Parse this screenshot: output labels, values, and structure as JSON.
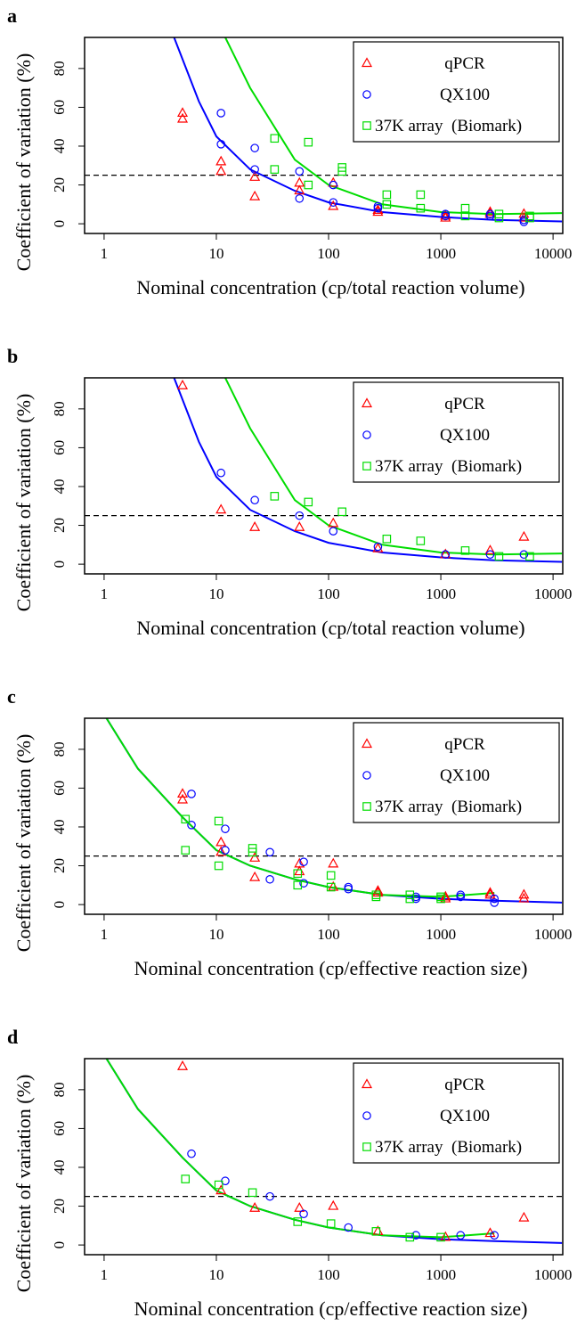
{
  "chart_data": [
    {
      "type": "scatter",
      "panel": "a",
      "xlabel": "Nominal concentration (cp/total reaction volume)",
      "ylabel": "Coefficient of variation (%)",
      "xlog": true,
      "xlim": [
        0.67,
        12200
      ],
      "ylim": [
        -5,
        96
      ],
      "xticks": [
        1,
        10,
        100,
        1000,
        10000
      ],
      "yticks": [
        0,
        20,
        40,
        60,
        80
      ],
      "hline": 25,
      "legend": "top-right",
      "series": [
        {
          "name": "qPCR",
          "color": "#ff0000",
          "marker": "triangle",
          "x": [
            5,
            5,
            11,
            11,
            22,
            22,
            55,
            55,
            110,
            110,
            275,
            275,
            1100,
            1100,
            2750,
            2750,
            5500,
            5500
          ],
          "values": [
            57,
            54,
            32,
            27,
            24,
            14,
            21,
            17,
            21,
            9,
            7,
            6,
            4,
            3,
            6,
            5,
            5,
            3
          ]
        },
        {
          "name": "QX100",
          "color": "#0000ff",
          "marker": "circle",
          "x": [
            11,
            11,
            22,
            22,
            55,
            55,
            110,
            110,
            275,
            275,
            1100,
            1100,
            2750,
            2750,
            5500,
            5500
          ],
          "values": [
            57,
            41,
            39,
            28,
            27,
            13,
            20,
            11,
            9,
            8,
            4,
            5,
            5,
            4,
            1,
            2
          ]
        },
        {
          "name": "37K array  (Biomark)",
          "color": "#00dd00",
          "marker": "square",
          "x": [
            33,
            33,
            66,
            66,
            132,
            132,
            330,
            330,
            660,
            660,
            1650,
            1650,
            3300,
            3300,
            6200,
            6200
          ],
          "values": [
            44,
            28,
            42,
            20,
            29,
            27,
            15,
            10,
            15,
            8,
            8,
            4,
            5,
            3,
            4,
            3
          ]
        }
      ],
      "fits": [
        {
          "color": "#0000ff",
          "x": [
            4.2,
            7,
            10,
            20,
            50,
            100,
            300,
            1000,
            3000,
            12000
          ],
          "values": [
            96,
            63,
            45,
            28,
            17,
            11,
            6,
            3.5,
            2,
            1.2
          ]
        },
        {
          "color": "#00dd00",
          "x": [
            12,
            20,
            50,
            100,
            300,
            1000,
            3000,
            12000
          ],
          "values": [
            96,
            70,
            33,
            20,
            10,
            6,
            5,
            5.5
          ]
        }
      ]
    },
    {
      "type": "scatter",
      "panel": "b",
      "xlabel": "Nominal concentration (cp/total reaction volume)",
      "ylabel": "Coefficient of variation (%)",
      "xlog": true,
      "xlim": [
        0.67,
        12200
      ],
      "ylim": [
        -5,
        96
      ],
      "xticks": [
        1,
        10,
        100,
        1000,
        10000
      ],
      "yticks": [
        0,
        20,
        40,
        60,
        80
      ],
      "hline": 25,
      "legend": "top-right",
      "series": [
        {
          "name": "qPCR",
          "color": "#ff0000",
          "marker": "triangle",
          "x": [
            5,
            11,
            22,
            55,
            110,
            275,
            1100,
            2750,
            5500
          ],
          "values": [
            92,
            28,
            19,
            19,
            21,
            8,
            5,
            7,
            14
          ]
        },
        {
          "name": "QX100",
          "color": "#0000ff",
          "marker": "circle",
          "x": [
            11,
            22,
            55,
            110,
            275,
            1100,
            2750,
            5500
          ],
          "values": [
            47,
            33,
            25,
            17,
            9,
            5,
            5,
            5
          ]
        },
        {
          "name": "37K array  (Biomark)",
          "color": "#00dd00",
          "marker": "square",
          "x": [
            33,
            66,
            132,
            330,
            660,
            1650,
            3300,
            6200
          ],
          "values": [
            35,
            32,
            27,
            13,
            12,
            7,
            4,
            4
          ]
        }
      ],
      "fits": [
        {
          "color": "#0000ff",
          "x": [
            4.2,
            7,
            10,
            20,
            50,
            100,
            300,
            1000,
            3000,
            12000
          ],
          "values": [
            96,
            63,
            45,
            28,
            17,
            11,
            6,
            3.5,
            2,
            1.2
          ]
        },
        {
          "color": "#00dd00",
          "x": [
            12,
            20,
            50,
            100,
            300,
            1000,
            3000,
            12000
          ],
          "values": [
            96,
            70,
            33,
            20,
            10,
            6,
            5,
            5.5
          ]
        }
      ]
    },
    {
      "type": "scatter",
      "panel": "c",
      "xlabel": "Nominal concentration (cp/effective reaction size)",
      "ylabel": "Coefficient of variation (%)",
      "xlog": true,
      "xlim": [
        0.67,
        12200
      ],
      "ylim": [
        -5,
        96
      ],
      "xticks": [
        1,
        10,
        100,
        1000,
        10000
      ],
      "yticks": [
        0,
        20,
        40,
        60,
        80
      ],
      "hline": 25,
      "legend": "top-right",
      "series": [
        {
          "name": "qPCR",
          "color": "#ff0000",
          "marker": "triangle",
          "x": [
            5,
            5,
            11,
            11,
            22,
            22,
            55,
            55,
            110,
            110,
            275,
            275,
            1100,
            1100,
            2750,
            2750,
            5500,
            5500
          ],
          "values": [
            57,
            54,
            32,
            27,
            24,
            14,
            21,
            17,
            21,
            9,
            7,
            6,
            4,
            3,
            6,
            5,
            5,
            3
          ]
        },
        {
          "name": "QX100",
          "color": "#0000ff",
          "marker": "circle",
          "x": [
            6,
            6,
            12,
            12,
            30,
            30,
            60,
            60,
            150,
            150,
            600,
            600,
            1500,
            1500,
            3000,
            3000
          ],
          "values": [
            57,
            41,
            39,
            28,
            27,
            13,
            22,
            11,
            9,
            8,
            4,
            3,
            5,
            4,
            1,
            3
          ]
        },
        {
          "name": "37K array  (Biomark)",
          "color": "#00dd00",
          "marker": "square",
          "x": [
            5.3,
            5.3,
            10.5,
            10.5,
            21,
            21,
            53,
            53,
            105,
            105,
            265,
            265,
            530,
            530,
            1000,
            1000
          ],
          "values": [
            44,
            28,
            43,
            20,
            29,
            27,
            16,
            10,
            15,
            9,
            5,
            4,
            5,
            3,
            4,
            3
          ]
        }
      ],
      "fits": [
        {
          "color": "#0000ff",
          "x": [
            1.05,
            2,
            5,
            10,
            20,
            50,
            100,
            300,
            1000,
            3000,
            12000
          ],
          "values": [
            96,
            70,
            45,
            28,
            20,
            13,
            9,
            5,
            3,
            2,
            1
          ]
        },
        {
          "color": "#00dd00",
          "x": [
            1.05,
            2,
            5,
            10,
            20,
            50,
            100,
            300,
            1000,
            3000
          ],
          "values": [
            96,
            70,
            45,
            28,
            20,
            13,
            9,
            5,
            4,
            6
          ]
        }
      ]
    },
    {
      "type": "scatter",
      "panel": "d",
      "xlabel": "Nominal concentration (cp/effective reaction size)",
      "ylabel": "Coefficient of variation (%)",
      "xlog": true,
      "xlim": [
        0.67,
        12200
      ],
      "ylim": [
        -5,
        96
      ],
      "xticks": [
        1,
        10,
        100,
        1000,
        10000
      ],
      "yticks": [
        0,
        20,
        40,
        60,
        80
      ],
      "hline": 25,
      "legend": "top-right",
      "series": [
        {
          "name": "qPCR",
          "color": "#ff0000",
          "marker": "triangle",
          "x": [
            5,
            11,
            22,
            55,
            110,
            275,
            1100,
            2750,
            5500
          ],
          "values": [
            92,
            28,
            19,
            19,
            20,
            7,
            4,
            6,
            14
          ]
        },
        {
          "name": "QX100",
          "color": "#0000ff",
          "marker": "circle",
          "x": [
            6,
            12,
            30,
            60,
            150,
            600,
            1500,
            3000
          ],
          "values": [
            47,
            33,
            25,
            16,
            9,
            5,
            5,
            5
          ]
        },
        {
          "name": "37K array  (Biomark)",
          "color": "#00dd00",
          "marker": "square",
          "x": [
            5.3,
            10.5,
            21,
            53,
            105,
            265,
            530,
            1000
          ],
          "values": [
            34,
            31,
            27,
            12,
            11,
            7,
            4,
            4
          ]
        }
      ],
      "fits": [
        {
          "color": "#0000ff",
          "x": [
            1.05,
            2,
            5,
            10,
            20,
            50,
            100,
            300,
            1000,
            3000,
            12000
          ],
          "values": [
            96,
            70,
            45,
            28,
            20,
            13,
            9,
            5,
            3,
            2,
            1
          ]
        },
        {
          "color": "#00dd00",
          "x": [
            1.05,
            2,
            5,
            10,
            20,
            50,
            100,
            300,
            1000,
            3000
          ],
          "values": [
            96,
            70,
            45,
            28,
            20,
            13,
            9,
            5,
            4,
            6
          ]
        }
      ]
    }
  ]
}
